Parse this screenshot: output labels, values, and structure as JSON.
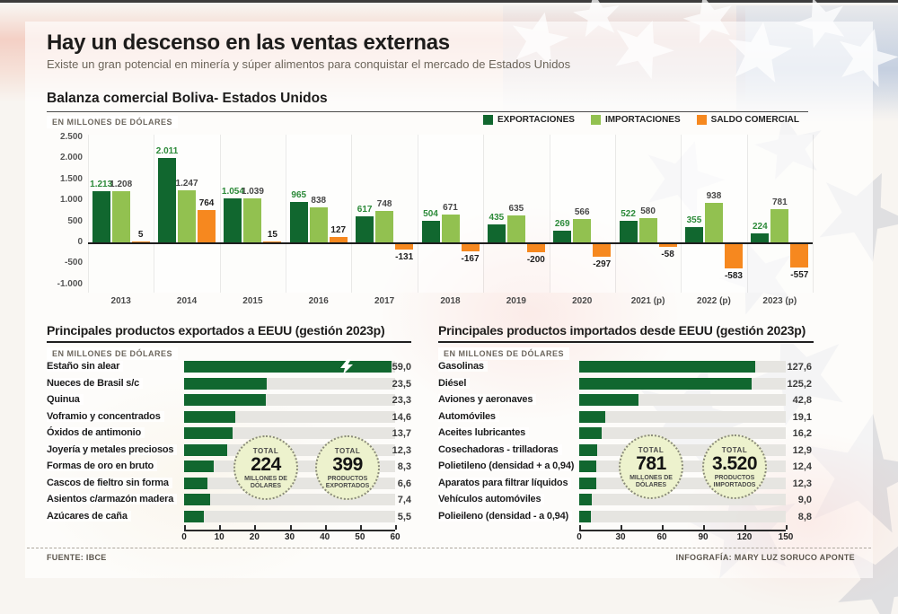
{
  "page": {
    "title": "Hay un descenso en las ventas externas",
    "subtitle": "Existe un gran potencial en minería y súper alimentos para conquistar el mercado de Estados Unidos",
    "source": "FUENTE: IBCE",
    "credit": "INFOGRAFÍA: MARY LUZ SORUCO APONTE"
  },
  "colors": {
    "exportaciones": "#11672f",
    "importaciones": "#92c150",
    "saldo": "#f6881f",
    "export_label": "#2c8a39",
    "import_label": "#474747",
    "saldo_label": "#1f1f1f"
  },
  "chart_data": [
    {
      "id": "balanza-comercial",
      "type": "bar",
      "title": "Balanza comercial Boliva- Estados Unidos",
      "units": "EN MILLONES DE DÓLARES",
      "legend_position": "top-right",
      "ylim": [
        -1000,
        2500
      ],
      "y_ticks": [
        {
          "v": 2500,
          "label": "2.500"
        },
        {
          "v": 2000,
          "label": "2.000"
        },
        {
          "v": 1500,
          "label": "1.500"
        },
        {
          "v": 1000,
          "label": "1.000"
        },
        {
          "v": 500,
          "label": "500"
        },
        {
          "v": 0,
          "label": "0"
        },
        {
          "v": -500,
          "label": "-500"
        },
        {
          "v": -1000,
          "label": "-1.000"
        }
      ],
      "categories": [
        "2013",
        "2014",
        "2015",
        "2016",
        "2017",
        "2018",
        "2019",
        "2020",
        "2021 (p)",
        "2022 (p)",
        "2023 (p)"
      ],
      "series": [
        {
          "name": "EXPORTACIONES",
          "color": "#11672f",
          "label_color": "#2c8a39",
          "values": [
            1213,
            2011,
            1054,
            965,
            617,
            504,
            435,
            269,
            522,
            355,
            224
          ],
          "labels": [
            "1.213",
            "2.011",
            "1.054",
            "965",
            "617",
            "504",
            "435",
            "269",
            "522",
            "355",
            "224"
          ]
        },
        {
          "name": "IMPORTACIONES",
          "color": "#92c150",
          "label_color": "#474747",
          "values": [
            1208,
            1247,
            1039,
            838,
            748,
            671,
            635,
            566,
            580,
            938,
            781
          ],
          "labels": [
            "1.208",
            "1.247",
            "1.039",
            "838",
            "748",
            "671",
            "635",
            "566",
            "580",
            "938",
            "781"
          ]
        },
        {
          "name": "SALDO COMERCIAL",
          "color": "#f6881f",
          "label_color": "#1f1f1f",
          "values": [
            5,
            764,
            15,
            127,
            -131,
            -167,
            -200,
            -297,
            -58,
            -583,
            -557
          ],
          "labels": [
            "5",
            "764",
            "15",
            "127",
            "-131",
            "-167",
            "-200",
            "-297",
            "-58",
            "-583",
            "-557"
          ]
        }
      ]
    },
    {
      "id": "productos-exportados",
      "type": "bar-horizontal",
      "title": "Principales productos exportados a EEUU (gestión 2023p)",
      "units": "EN MILLONES DE DÓLARES",
      "xlim": [
        0,
        60
      ],
      "x_ticks": [
        0,
        10,
        20,
        30,
        40,
        50,
        60
      ],
      "rows": [
        {
          "name": "Estaño sin alear",
          "value": 59.0,
          "label": "59,0",
          "break_marker": true
        },
        {
          "name": "Nueces de Brasil s/c",
          "value": 23.5,
          "label": "23,5"
        },
        {
          "name": "Quinua",
          "value": 23.3,
          "label": "23,3"
        },
        {
          "name": "Voframio y concentrados",
          "value": 14.6,
          "label": "14,6"
        },
        {
          "name": "Óxidos de antimonio",
          "value": 13.7,
          "label": "13,7"
        },
        {
          "name": "Joyería y metales preciosos",
          "value": 12.3,
          "label": "12,3"
        },
        {
          "name": "Formas de oro en bruto",
          "value": 8.3,
          "label": "8,3"
        },
        {
          "name": "Cascos de fieltro sin forma",
          "value": 6.6,
          "label": "6,6"
        },
        {
          "name": "Asientos c/armazón madera",
          "value": 7.4,
          "label": "7,4"
        },
        {
          "name": "Azúcares de caña",
          "value": 5.5,
          "label": "5,5"
        }
      ],
      "totals": [
        {
          "top": "TOTAL",
          "number": "224",
          "caption": "MILLONES DE DÓLARES"
        },
        {
          "top": "TOTAL",
          "number": "399",
          "caption": "PRODUCTOS EXPORTADOS"
        }
      ]
    },
    {
      "id": "productos-importados",
      "type": "bar-horizontal",
      "title": "Principales productos importados desde EEUU (gestión 2023p)",
      "units": "EN MILLONES DE DÓLARES",
      "xlim": [
        0,
        150
      ],
      "x_ticks": [
        0,
        30,
        60,
        90,
        120,
        150
      ],
      "rows": [
        {
          "name": "Gasolinas",
          "value": 127.6,
          "label": "127,6"
        },
        {
          "name": "Diésel",
          "value": 125.2,
          "label": "125,2"
        },
        {
          "name": "Aviones y aeronaves",
          "value": 42.8,
          "label": "42,8"
        },
        {
          "name": "Automóviles",
          "value": 19.1,
          "label": "19,1"
        },
        {
          "name": "Aceites lubricantes",
          "value": 16.2,
          "label": "16,2"
        },
        {
          "name": "Cosechadoras - trilladoras",
          "value": 12.9,
          "label": "12,9"
        },
        {
          "name": "Polietileno (densidad + a 0,94)",
          "value": 12.4,
          "label": "12,4"
        },
        {
          "name": "Aparatos para filtrar líquidos",
          "value": 12.3,
          "label": "12,3"
        },
        {
          "name": "Vehículos automóviles",
          "value": 9.0,
          "label": "9,0"
        },
        {
          "name": "Polieileno (densidad - a 0,94)",
          "value": 8.8,
          "label": "8,8"
        }
      ],
      "totals": [
        {
          "top": "TOTAL",
          "number": "781",
          "caption": "MILLONES DE DÓLARES"
        },
        {
          "top": "TOTAL",
          "number": "3.520",
          "caption": "PRODUCTOS IMPORTADOS"
        }
      ]
    }
  ]
}
